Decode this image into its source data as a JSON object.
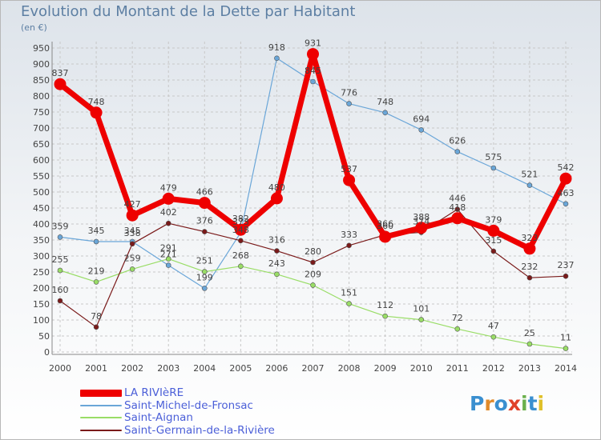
{
  "title": "Evolution du Montant de la Dette par Habitant",
  "unit": "(en €)",
  "logo_text": "Proxiti",
  "chart_data": {
    "type": "line",
    "x": [
      2000,
      2001,
      2002,
      2003,
      2004,
      2005,
      2006,
      2007,
      2008,
      2009,
      2010,
      2011,
      2012,
      2013,
      2014
    ],
    "ylim": [
      0,
      950
    ],
    "yticks": [
      0,
      50,
      100,
      150,
      200,
      250,
      300,
      350,
      400,
      450,
      500,
      550,
      600,
      650,
      700,
      750,
      800,
      850,
      900,
      950
    ],
    "grid": true,
    "legend_position": "bottom-left",
    "series": [
      {
        "name": "LA RIVIèRE",
        "color": "#ee0000",
        "values": [
          837,
          748,
          427,
          479,
          466,
          382,
          480,
          931,
          537,
          360,
          388,
          418,
          379,
          323,
          542
        ]
      },
      {
        "name": "Saint-Michel-de-Fronsac",
        "color": "#6aa6d8",
        "values": [
          359,
          345,
          345,
          271,
          199,
          373,
          918,
          845,
          776,
          748,
          694,
          626,
          575,
          521,
          463
        ]
      },
      {
        "name": "Saint-Aignan",
        "color": "#99dd66",
        "values": [
          255,
          219,
          259,
          291,
          251,
          268,
          243,
          209,
          151,
          112,
          101,
          72,
          47,
          25,
          11
        ]
      },
      {
        "name": "Saint-Germain-de-la-Rivière",
        "color": "#7a1a1a",
        "values": [
          160,
          78,
          338,
          402,
          376,
          348,
          316,
          280,
          333,
          366,
          374,
          446,
          315,
          232,
          237
        ]
      }
    ]
  }
}
